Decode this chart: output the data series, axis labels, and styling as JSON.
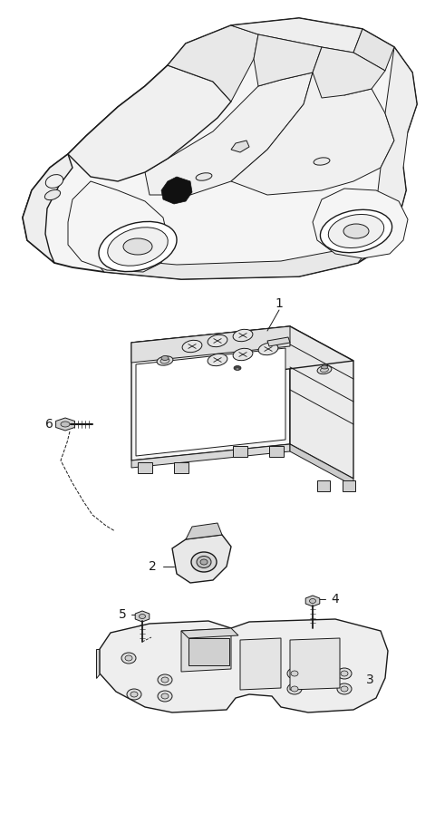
{
  "bg_color": "#ffffff",
  "line_color": "#1a1a1a",
  "fig_width": 4.8,
  "fig_height": 8.98,
  "dpi": 100,
  "label_fontsize": 10
}
